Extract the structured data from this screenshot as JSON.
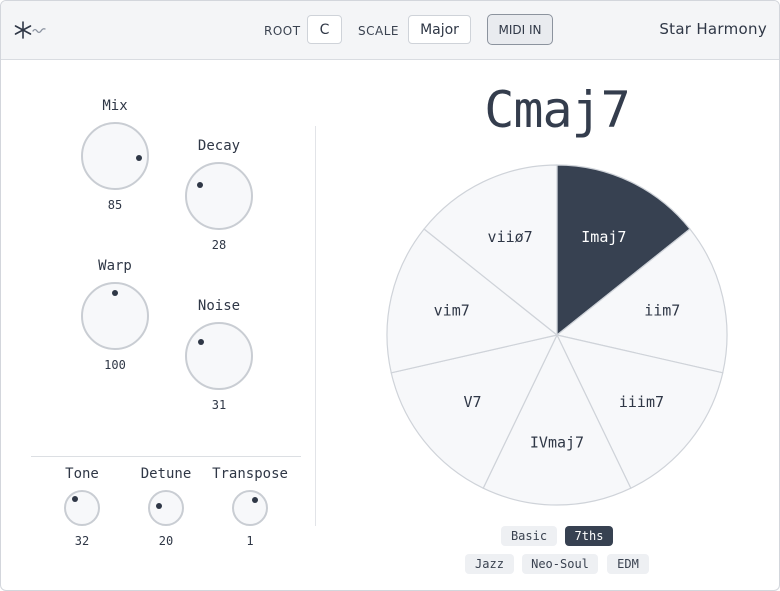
{
  "app": {
    "title": "Star Harmony",
    "logo": "star-wave-logo"
  },
  "header": {
    "root_label": "ROOT",
    "root_value": "C",
    "scale_label": "SCALE",
    "scale_value": "Major",
    "midi_label": "MIDI IN"
  },
  "knobs": [
    {
      "name": "mix",
      "label": "Mix",
      "value": "85"
    },
    {
      "name": "decay",
      "label": "Decay",
      "value": "28"
    },
    {
      "name": "warp",
      "label": "Warp",
      "value": "100"
    },
    {
      "name": "noise",
      "label": "Noise",
      "value": "31"
    }
  ],
  "small_knobs": [
    {
      "name": "tone",
      "label": "Tone",
      "value": "32"
    },
    {
      "name": "detune",
      "label": "Detune",
      "value": "20"
    },
    {
      "name": "transpose",
      "label": "Transpose",
      "value": "1"
    }
  ],
  "current_chord": "Cmaj7",
  "wheel": {
    "segments": [
      "Imaj7",
      "iim7",
      "iiim7",
      "IVmaj7",
      "V7",
      "vim7",
      "viiø7"
    ],
    "active": "Imaj7"
  },
  "chord_sets": [
    {
      "label": "Basic",
      "active": false
    },
    {
      "label": "7ths",
      "active": true
    },
    {
      "label": "Jazz",
      "active": false
    },
    {
      "label": "Neo-Soul",
      "active": false
    },
    {
      "label": "EDM",
      "active": false
    }
  ],
  "colors": {
    "accent": "#374151",
    "segment_fill": "#f7f8fa",
    "segment_stroke": "#cfd3d9"
  }
}
